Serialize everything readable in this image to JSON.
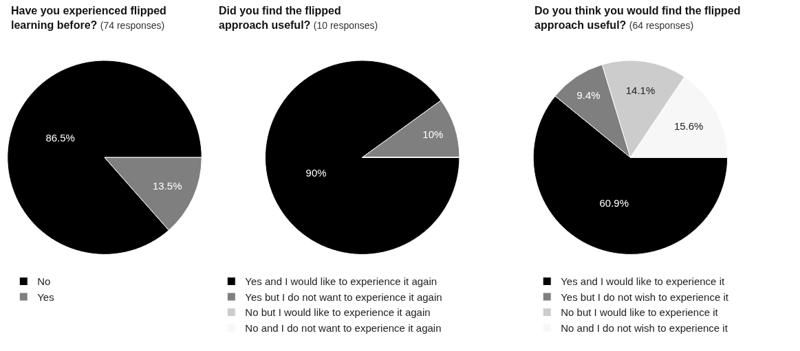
{
  "chart_data": [
    {
      "type": "pie",
      "title": "Have you experienced flipped learning before?",
      "subtitle": "(74 responses)",
      "categories": [
        "No",
        "Yes"
      ],
      "values": [
        86.5,
        13.5
      ],
      "colors": [
        "#000000",
        "#7f7f7f"
      ],
      "value_labels": [
        "86.5%",
        "13.5%"
      ],
      "legend": "bottom"
    },
    {
      "type": "pie",
      "title": "Did you find the flipped approach useful?",
      "subtitle": "(10 responses)",
      "categories": [
        "Yes and I would like to experience it again",
        "Yes but I do not want to experience it again",
        "No but I would like to experience it again",
        "No and I do not want to experience it again"
      ],
      "values": [
        90,
        10,
        0,
        0
      ],
      "colors": [
        "#000000",
        "#7f7f7f",
        "#cccccc",
        "#f7f7f7"
      ],
      "value_labels": [
        "90%",
        "10%",
        null,
        null
      ],
      "legend": "bottom"
    },
    {
      "type": "pie",
      "title": "Do you think you would find the flipped approach useful?",
      "subtitle": "(64 responses)",
      "categories": [
        "Yes and I would like to experience it",
        "Yes but I do not wish to experience it",
        "No but I would like to experience it",
        "No and I do not wish to experience it"
      ],
      "values": [
        60.9,
        9.4,
        14.1,
        15.6
      ],
      "colors": [
        "#000000",
        "#7f7f7f",
        "#cccccc",
        "#f7f7f7"
      ],
      "value_labels": [
        "60.9%",
        "9.4%",
        "14.1%",
        "15.6%"
      ],
      "legend": "bottom"
    }
  ]
}
